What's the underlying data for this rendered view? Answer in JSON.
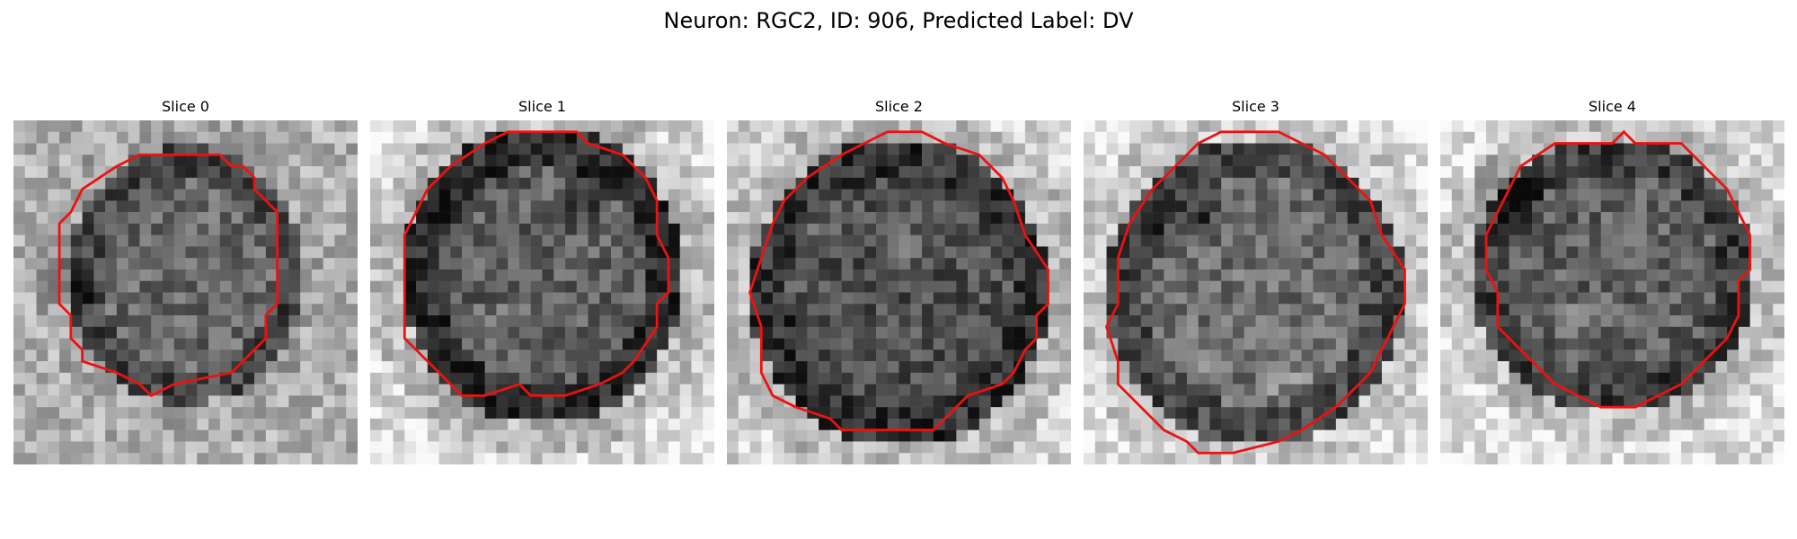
{
  "figure": {
    "title": "Neuron: RGC2, ID: 906, Predicted Label: DV"
  },
  "colors": {
    "contour": "#ee1111",
    "colormap": "gray"
  },
  "slices": [
    {
      "title": "Slice 0",
      "icon": "grayscale-microscopy-image"
    },
    {
      "title": "Slice 1",
      "icon": "grayscale-microscopy-image"
    },
    {
      "title": "Slice 2",
      "icon": "grayscale-microscopy-image"
    },
    {
      "title": "Slice 3",
      "icon": "grayscale-microscopy-image"
    },
    {
      "title": "Slice 4",
      "icon": "grayscale-microscopy-image"
    }
  ]
}
